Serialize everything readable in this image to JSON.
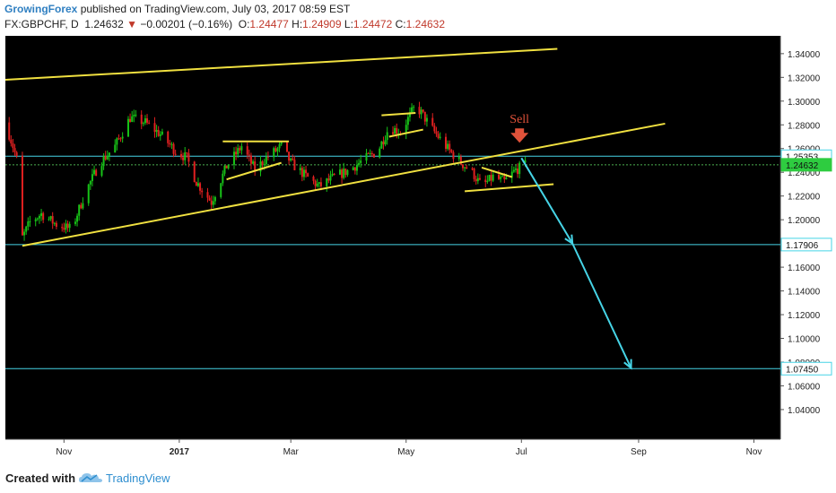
{
  "header": {
    "author": "GrowingForex",
    "published_text": "published on TradingView.com, July 03, 2017 08:59 EST",
    "symbol": "FX:GBPCHF, D",
    "last": "1.24632",
    "change": "−0.00201 (−0.16%)",
    "open_label": "O:",
    "open": "1.24477",
    "high_label": "H:",
    "high": "1.24909",
    "low_label": "L:",
    "low": "1.24472",
    "close_label": "C:",
    "close": "1.24632"
  },
  "footer": {
    "created_with": "Created with",
    "brand": "TradingView"
  },
  "colors": {
    "background": "#000000",
    "bull": "#17c217",
    "bear": "#e02020",
    "trendline": "#f0e040",
    "hline": "#46d4e6",
    "arrow": "#46d4e6",
    "sell": "#e0523a"
  },
  "chart_data": {
    "type": "candlestick",
    "symbol": "FX:GBPCHF",
    "timeframe": "D",
    "x_range": [
      "2016-10-01",
      "2017-11-15"
    ],
    "y_range": [
      1.015,
      1.355
    ],
    "x_ticks": [
      {
        "label": "Nov",
        "date": "2016-11-01"
      },
      {
        "label": "2017",
        "date": "2017-01-01"
      },
      {
        "label": "Mar",
        "date": "2017-03-01"
      },
      {
        "label": "May",
        "date": "2017-05-01"
      },
      {
        "label": "Jul",
        "date": "2017-07-01"
      },
      {
        "label": "Sep",
        "date": "2017-09-01"
      },
      {
        "label": "Nov",
        "date": "2017-11-01"
      }
    ],
    "y_ticks": [
      "1.34000",
      "1.32000",
      "1.30000",
      "1.28000",
      "1.26000",
      "1.24000",
      "1.22000",
      "1.20000",
      "1.18000",
      "1.16000",
      "1.14000",
      "1.12000",
      "1.10000",
      "1.08000",
      "1.06000",
      "1.04000"
    ],
    "price_path": [
      [
        "2016-10-01",
        1.282
      ],
      [
        "2016-10-05",
        1.262
      ],
      [
        "2016-10-09",
        1.24
      ],
      [
        "2016-10-10",
        1.185
      ],
      [
        "2016-10-14",
        1.198
      ],
      [
        "2016-10-20",
        1.205
      ],
      [
        "2016-10-28",
        1.196
      ],
      [
        "2016-11-05",
        1.192
      ],
      [
        "2016-11-12",
        1.222
      ],
      [
        "2016-11-20",
        1.248
      ],
      [
        "2016-11-28",
        1.262
      ],
      [
        "2016-12-06",
        1.286
      ],
      [
        "2016-12-14",
        1.282
      ],
      [
        "2016-12-22",
        1.272
      ],
      [
        "2016-12-30",
        1.258
      ],
      [
        "2017-01-05",
        1.252
      ],
      [
        "2017-01-10",
        1.232
      ],
      [
        "2017-01-18",
        1.215
      ],
      [
        "2017-01-26",
        1.245
      ],
      [
        "2017-02-03",
        1.262
      ],
      [
        "2017-02-10",
        1.242
      ],
      [
        "2017-02-16",
        1.252
      ],
      [
        "2017-02-24",
        1.262
      ],
      [
        "2017-03-01",
        1.248
      ],
      [
        "2017-03-08",
        1.238
      ],
      [
        "2017-03-16",
        1.228
      ],
      [
        "2017-03-24",
        1.236
      ],
      [
        "2017-04-01",
        1.242
      ],
      [
        "2017-04-08",
        1.25
      ],
      [
        "2017-04-16",
        1.258
      ],
      [
        "2017-04-22",
        1.278
      ],
      [
        "2017-04-28",
        1.274
      ],
      [
        "2017-05-02",
        1.285
      ],
      [
        "2017-05-06",
        1.296
      ],
      [
        "2017-05-10",
        1.288
      ],
      [
        "2017-05-14",
        1.278
      ],
      [
        "2017-05-18",
        1.27
      ],
      [
        "2017-05-24",
        1.258
      ],
      [
        "2017-05-30",
        1.248
      ],
      [
        "2017-06-05",
        1.24
      ],
      [
        "2017-06-10",
        1.228
      ],
      [
        "2017-06-16",
        1.236
      ],
      [
        "2017-06-22",
        1.232
      ],
      [
        "2017-06-28",
        1.242
      ],
      [
        "2017-07-03",
        1.2463
      ]
    ],
    "horizontal_lines": [
      {
        "price": 1.25353,
        "label": "1.25353"
      },
      {
        "price": 1.24632,
        "label": "1.24632",
        "dashed": true
      },
      {
        "price": 1.17906,
        "label": "1.17906"
      },
      {
        "price": 1.0745,
        "label": "1.07450"
      }
    ],
    "trendlines": [
      {
        "from": [
          "2016-10-01",
          1.318
        ],
        "to": [
          "2017-07-20",
          1.344
        ]
      },
      {
        "from": [
          "2016-10-10",
          1.178
        ],
        "to": [
          "2017-09-15",
          1.281
        ]
      },
      {
        "from": [
          "2017-01-24",
          1.266
        ],
        "to": [
          "2017-02-28",
          1.266
        ]
      },
      {
        "from": [
          "2017-01-26",
          1.234
        ],
        "to": [
          "2017-02-24",
          1.248
        ]
      },
      {
        "from": [
          "2017-04-18",
          1.288
        ],
        "to": [
          "2017-05-06",
          1.29
        ]
      },
      {
        "from": [
          "2017-04-22",
          1.27
        ],
        "to": [
          "2017-05-10",
          1.276
        ]
      },
      {
        "from": [
          "2017-06-01",
          1.224
        ],
        "to": [
          "2017-07-18",
          1.23
        ]
      },
      {
        "from": [
          "2017-06-10",
          1.244
        ],
        "to": [
          "2017-06-26",
          1.236
        ]
      }
    ],
    "arrows": [
      {
        "from": [
          "2017-07-01",
          1.252
        ],
        "to": [
          "2017-07-28",
          1.18
        ]
      },
      {
        "from": [
          "2017-07-28",
          1.18
        ],
        "to": [
          "2017-08-28",
          1.075
        ]
      }
    ],
    "annotation": {
      "text": "Sell",
      "date": "2017-06-30",
      "price": 1.274
    }
  }
}
